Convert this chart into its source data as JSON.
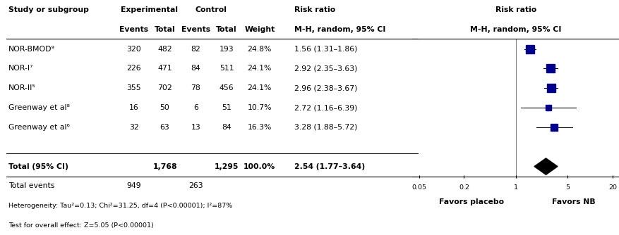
{
  "studies": [
    {
      "name": "NOR-BMOD⁹",
      "exp_events": 320,
      "exp_total": 482,
      "ctrl_events": 82,
      "ctrl_total": 193,
      "weight": "24.8%",
      "rr": "1.56 (1.31–1.86)",
      "rr_val": 1.56,
      "ci_low": 1.31,
      "ci_high": 1.86,
      "weight_val": 24.8
    },
    {
      "name": "NOR-I⁷",
      "exp_events": 226,
      "exp_total": 471,
      "ctrl_events": 84,
      "ctrl_total": 511,
      "weight": "24.1%",
      "rr": "2.92 (2.35–3.63)",
      "rr_val": 2.92,
      "ci_low": 2.35,
      "ci_high": 3.63,
      "weight_val": 24.1
    },
    {
      "name": "NOR-II⁵",
      "exp_events": 355,
      "exp_total": 702,
      "ctrl_events": 78,
      "ctrl_total": 456,
      "weight": "24.1%",
      "rr": "2.96 (2.38–3.67)",
      "rr_val": 2.96,
      "ci_low": 2.38,
      "ci_high": 3.67,
      "weight_val": 24.1
    },
    {
      "name": "Greenway et al⁸",
      "exp_events": 16,
      "exp_total": 50,
      "ctrl_events": 6,
      "ctrl_total": 51,
      "weight": "10.7%",
      "rr": "2.72 (1.16–6.39)",
      "rr_val": 2.72,
      "ci_low": 1.16,
      "ci_high": 6.39,
      "weight_val": 10.7
    },
    {
      "name": "Greenway et al⁶",
      "exp_events": 32,
      "exp_total": 63,
      "ctrl_events": 13,
      "ctrl_total": 84,
      "weight": "16.3%",
      "rr": "3.28 (1.88–5.72)",
      "rr_val": 3.28,
      "ci_low": 1.88,
      "ci_high": 5.72,
      "weight_val": 16.3
    }
  ],
  "overall": {
    "label": "Total (95% CI)",
    "exp_total": "1,768",
    "ctrl_total": "1,295",
    "weight": "100.0%",
    "rr": "2.54 (1.77–3.64)",
    "rr_val": 2.54,
    "ci_low": 1.77,
    "ci_high": 3.64
  },
  "total_events_exp": 949,
  "total_events_ctrl": 263,
  "heterogeneity_text": "Heterogeneity: Tau²=0.13; Chi²=31.25, df=4 (P<0.00001); I²=87%",
  "overall_effect_text": "Test for overall effect: Z=5.05 (P<0.00001)",
  "axis_ticks": [
    0.05,
    0.2,
    1,
    5,
    20
  ],
  "axis_labels": [
    "0.05",
    "0.2",
    "1",
    "5",
    "20"
  ],
  "favors_left": "Favors placebo",
  "favors_right": "Favors NB",
  "square_color": "#00008B",
  "diamond_color": "#000000",
  "line_color": "#000000",
  "vline_color": "#808080",
  "fig_width": 8.78,
  "fig_height": 3.34,
  "dpi": 100
}
